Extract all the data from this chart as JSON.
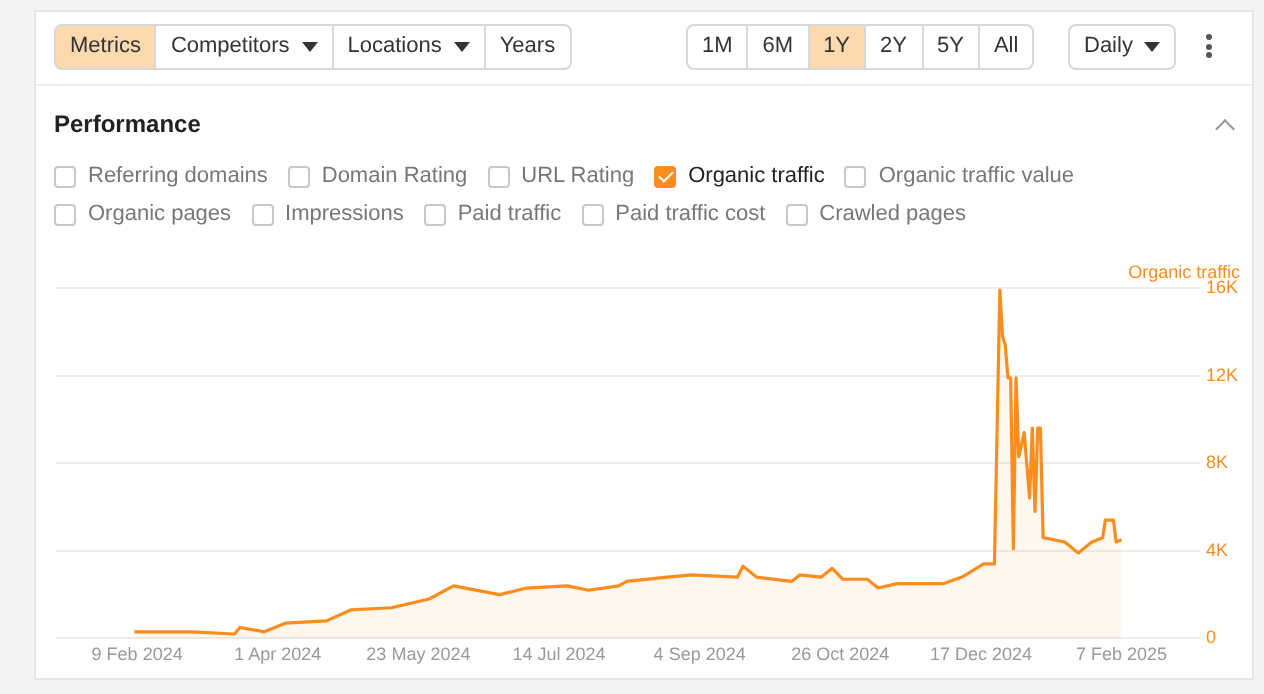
{
  "chart_data": {
    "type": "area",
    "title": "Performance",
    "x": [
      "2024-02-08",
      "2024-02-29",
      "2024-03-16",
      "2024-03-18",
      "2024-03-27",
      "2024-04-04",
      "2024-04-19",
      "2024-04-28",
      "2024-05-13",
      "2024-05-27",
      "2024-06-05",
      "2024-06-22",
      "2024-07-02",
      "2024-07-17",
      "2024-07-25",
      "2024-08-05",
      "2024-08-08",
      "2024-08-23",
      "2024-09-01",
      "2024-09-18",
      "2024-09-20",
      "2024-09-25",
      "2024-10-08",
      "2024-10-11",
      "2024-10-19",
      "2024-10-23",
      "2024-10-27",
      "2024-11-05",
      "2024-11-09",
      "2024-11-16",
      "2024-12-03",
      "2024-12-10",
      "2024-12-18",
      "2024-12-22",
      "2024-12-24",
      "2024-12-25",
      "2024-12-26",
      "2024-12-27",
      "2024-12-28",
      "2024-12-29",
      "2024-12-30",
      "2024-12-31",
      "2025-01-02",
      "2025-01-04",
      "2025-01-05",
      "2025-01-06",
      "2025-01-07",
      "2025-01-08",
      "2025-01-09",
      "2025-01-17",
      "2025-01-22",
      "2025-01-27",
      "2025-01-31",
      "2025-02-01",
      "2025-02-04",
      "2025-02-05",
      "2025-02-07"
    ],
    "series": [
      {
        "name": "Organic traffic",
        "color": "#fb8c1e",
        "values": [
          300,
          300,
          200,
          500,
          300,
          700,
          800,
          1300,
          1400,
          1800,
          2400,
          2000,
          2300,
          2400,
          2200,
          2400,
          2600,
          2800,
          2900,
          2800,
          3300,
          2800,
          2600,
          2900,
          2800,
          3200,
          2700,
          2700,
          2300,
          2500,
          2500,
          2800,
          3400,
          3400,
          15900,
          13800,
          13400,
          11900,
          11900,
          4100,
          11900,
          8300,
          9400,
          6400,
          9600,
          5800,
          9600,
          9600,
          4600,
          4400,
          3900,
          4400,
          4600,
          5400,
          5400,
          4400,
          4500
        ]
      }
    ],
    "ylabel": "Organic traffic",
    "xlim": [
      "2024-01-10",
      "2025-03-08"
    ],
    "xticks": [
      {
        "value": "2024-02-09",
        "label": "9 Feb 2024"
      },
      {
        "value": "2024-04-01",
        "label": "1 Apr 2024"
      },
      {
        "value": "2024-05-23",
        "label": "23 May 2024"
      },
      {
        "value": "2024-07-14",
        "label": "14 Jul 2024"
      },
      {
        "value": "2024-09-04",
        "label": "4 Sep 2024"
      },
      {
        "value": "2024-10-26",
        "label": "26 Oct 2024"
      },
      {
        "value": "2024-12-17",
        "label": "17 Dec 2024"
      },
      {
        "value": "2025-02-07",
        "label": "7 Feb 2025"
      }
    ],
    "ylim": [
      0,
      16000
    ],
    "yticks": [
      {
        "value": 0,
        "label": "0"
      },
      {
        "value": 4000,
        "label": "4K"
      },
      {
        "value": 8000,
        "label": "8K"
      },
      {
        "value": 12000,
        "label": "12K"
      },
      {
        "value": 16000,
        "label": "16K"
      }
    ],
    "grid": "y",
    "legend": "top",
    "annotations": [
      "Metrics",
      "Competitors",
      "Locations",
      "Years",
      "1M",
      "6M",
      "1Y",
      "2Y",
      "5Y",
      "All",
      "Daily",
      "Referring domains",
      "Domain Rating",
      "URL Rating",
      "Organic traffic value",
      "Organic pages",
      "Impressions",
      "Paid traffic",
      "Paid traffic cost",
      "Crawled pages"
    ]
  }
}
